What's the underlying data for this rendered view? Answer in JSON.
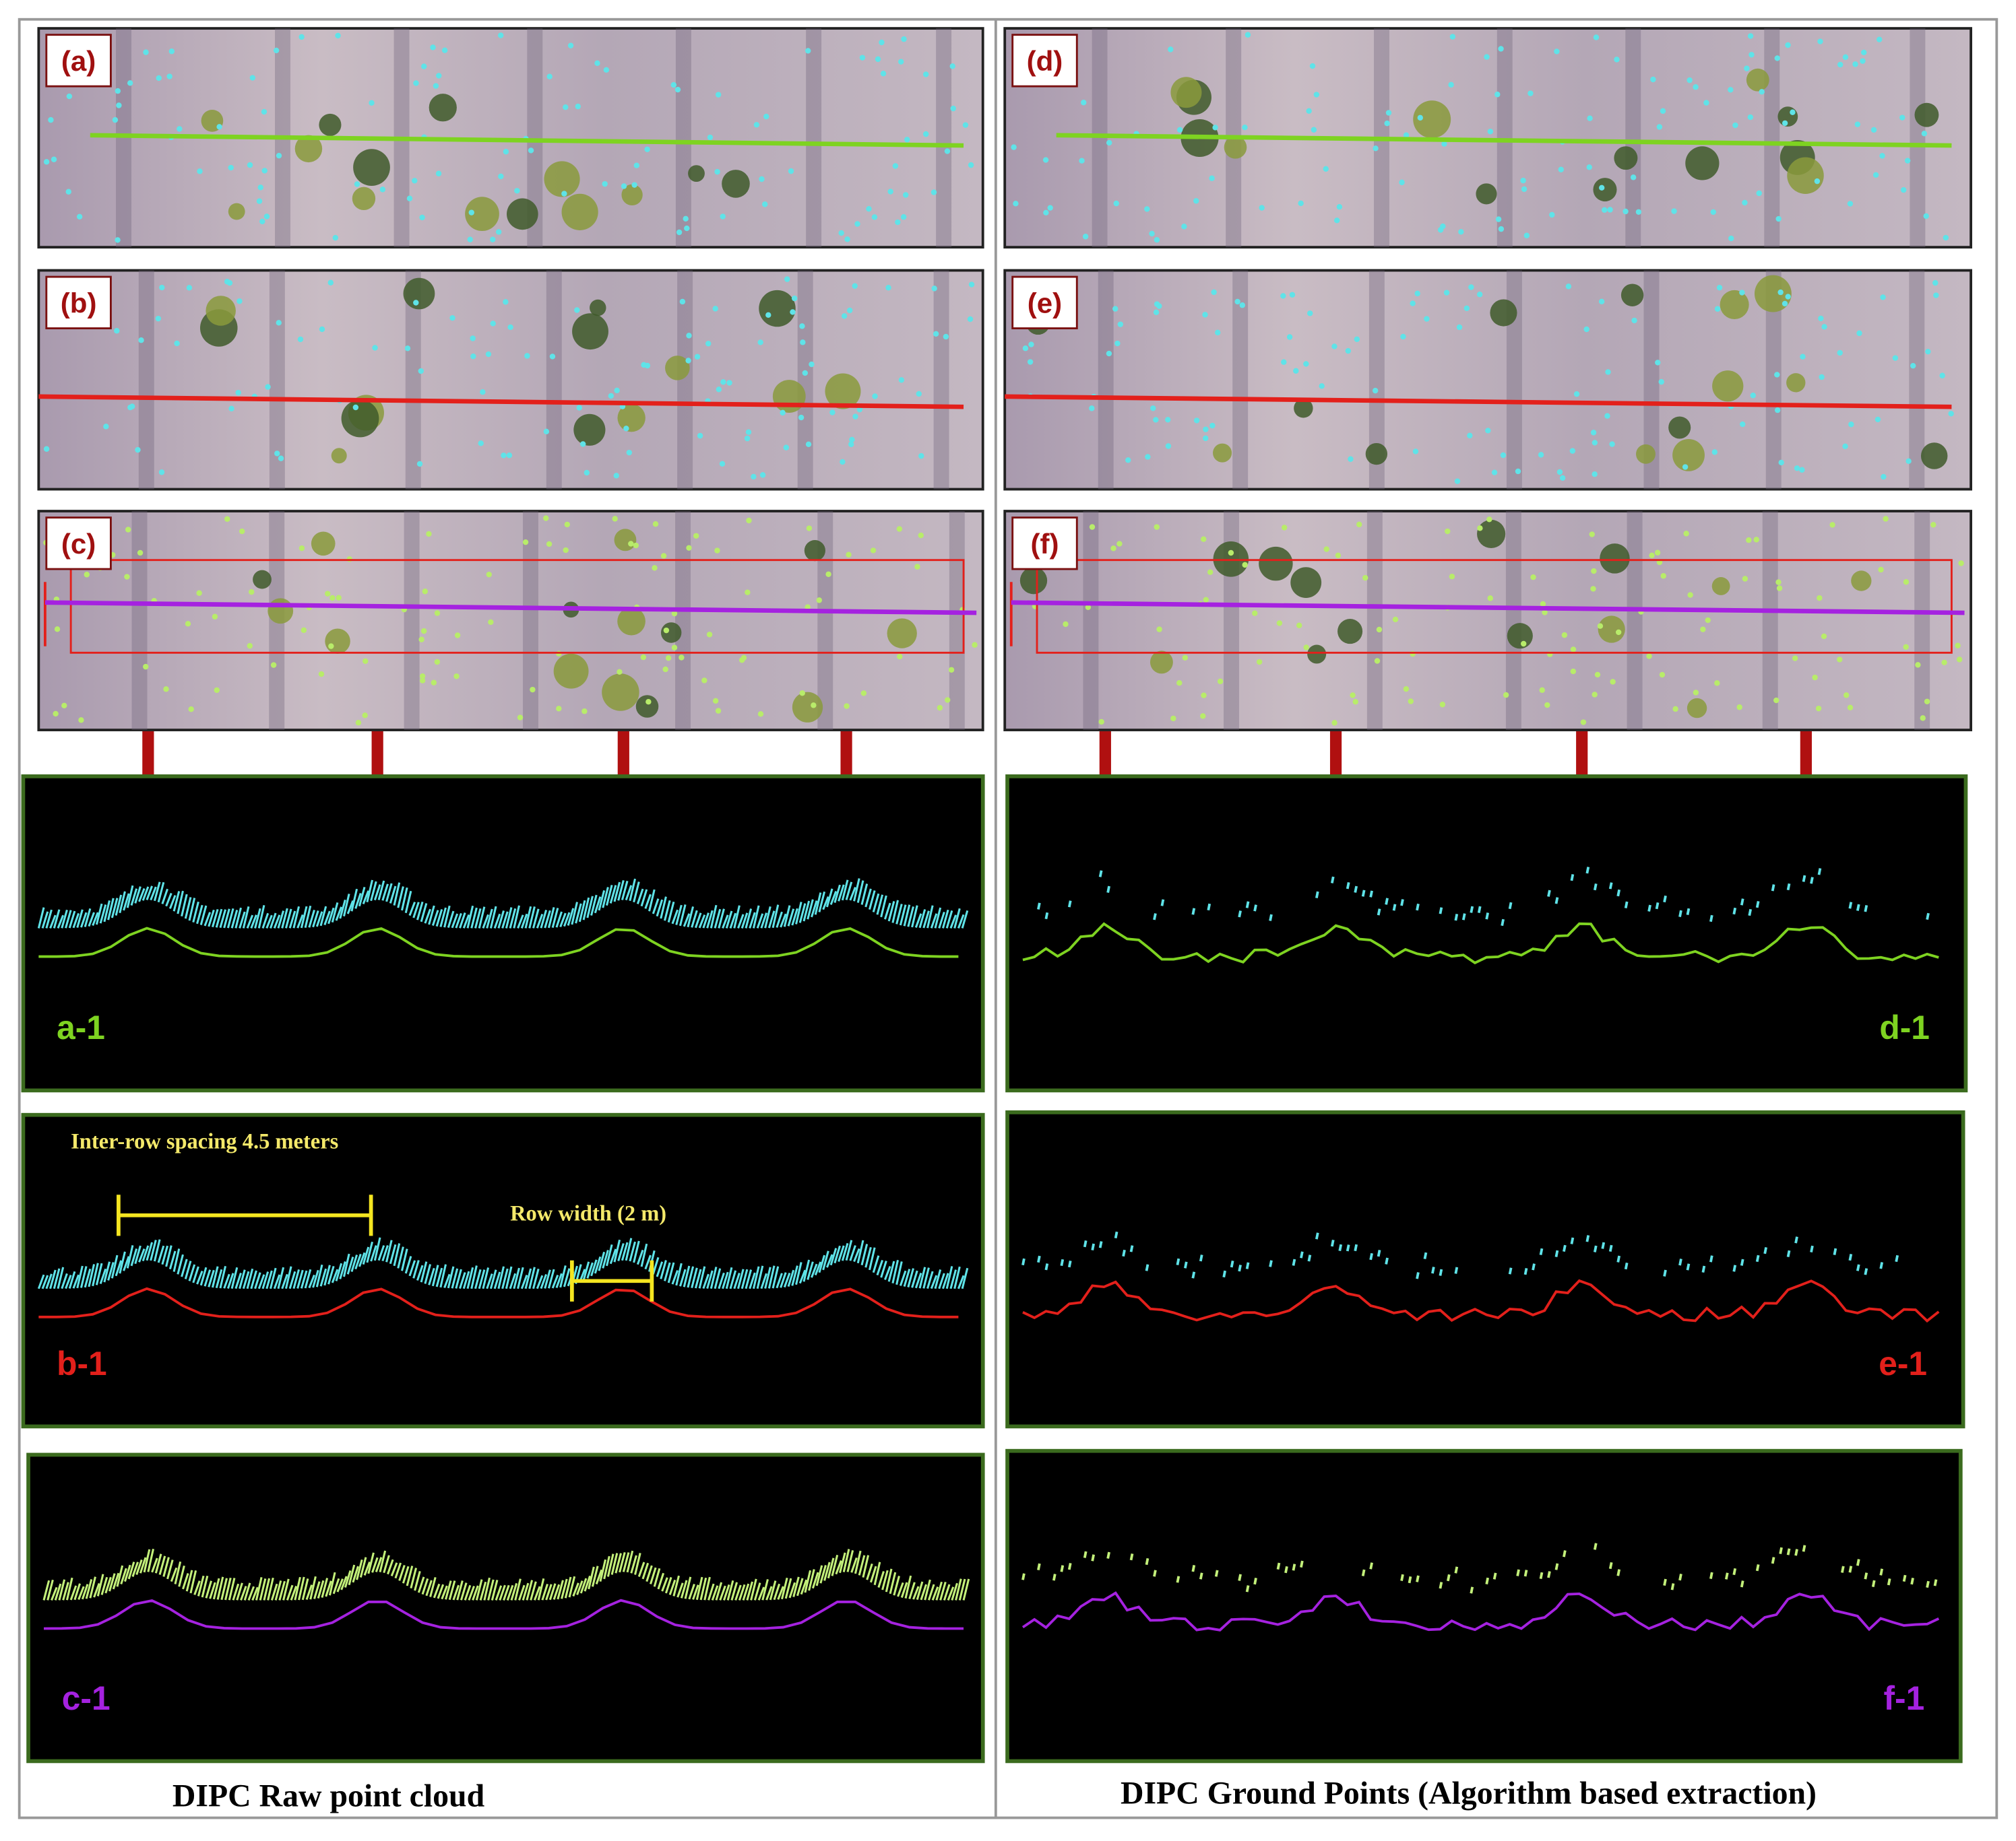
{
  "left_column": {
    "images": [
      {
        "label": "(a)"
      },
      {
        "label": "(b)"
      },
      {
        "label": "(c)"
      }
    ],
    "profiles": [
      {
        "label": "a-1"
      },
      {
        "label": "b-1"
      },
      {
        "label": "c-1"
      }
    ],
    "annotations": {
      "spacing": "Inter-row spacing 4.5 meters",
      "row_width": "Row width (2 m)"
    },
    "caption": "DIPC Raw point cloud"
  },
  "right_column": {
    "images": [
      {
        "label": "(d)"
      },
      {
        "label": "(e)"
      },
      {
        "label": "(f)"
      }
    ],
    "profiles": [
      {
        "label": "d-1"
      },
      {
        "label": "e-1"
      },
      {
        "label": "f-1"
      }
    ],
    "caption": "DIPC Ground Points (Algorithm based extraction)"
  }
}
